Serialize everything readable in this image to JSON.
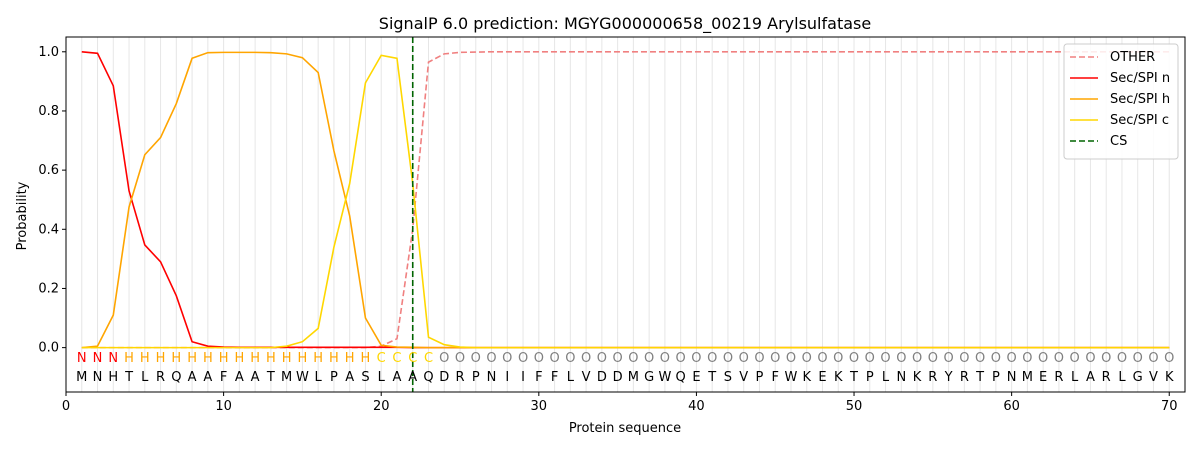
{
  "chart_data": {
    "type": "line",
    "title": "SignalP 6.0 prediction: MGYG000000658_00219 Arylsulfatase",
    "xlabel": "Protein sequence",
    "ylabel": "Probability",
    "xlim": [
      0,
      71
    ],
    "ylim": [
      -0.15,
      1.05
    ],
    "xticks": [
      0,
      10,
      20,
      30,
      40,
      50,
      60,
      70
    ],
    "yticks": [
      0.0,
      0.2,
      0.4,
      0.6,
      0.8,
      1.0
    ],
    "legend_position": "top-right",
    "sequence": "MNHTLRQAAFAATMWLPASLAAQDRPNIIFFLVDDMGWQETSVPFWKEKTPLNKRYRTPNMERLARLGVK",
    "labels": "NNNHHHHHHHHHHHHHHHHCCCCOOOOOOOOOOOOOOOOOOOOOOOOOOOOOOOOOOOOOOOOOOOOOOOO",
    "label_colors": {
      "N": "#ff0000",
      "H": "#ffa500",
      "C": "#ffd700",
      "O": "#808080"
    },
    "series": [
      {
        "name": "OTHER",
        "color": "#f08080",
        "dash": true,
        "values": [
          0,
          0,
          0,
          0,
          0,
          0,
          0,
          0,
          0,
          0,
          0,
          0,
          0,
          0,
          0,
          0,
          0,
          0,
          0,
          0.005,
          0.03,
          0.4,
          0.965,
          0.993,
          0.998,
          0.999,
          1,
          1,
          1,
          1,
          1,
          1,
          1,
          1,
          1,
          1,
          1,
          1,
          1,
          1,
          1,
          1,
          1,
          1,
          1,
          1,
          1,
          1,
          1,
          1,
          1,
          1,
          1,
          1,
          1,
          1,
          1,
          1,
          1,
          1,
          1,
          1,
          1,
          1,
          1,
          1,
          1,
          1,
          1,
          1
        ]
      },
      {
        "name": "Sec/SPI n",
        "color": "#ff0000",
        "dash": false,
        "values": [
          1.0,
          0.995,
          0.885,
          0.53,
          0.347,
          0.29,
          0.175,
          0.02,
          0.005,
          0.002,
          0.001,
          0.001,
          0.001,
          0.001,
          0.001,
          0.001,
          0.001,
          0.001,
          0.001,
          0.001,
          0.001,
          0,
          0,
          0,
          0,
          0,
          0,
          0,
          0,
          0,
          0,
          0,
          0,
          0,
          0,
          0,
          0,
          0,
          0,
          0,
          0,
          0,
          0,
          0,
          0,
          0,
          0,
          0,
          0,
          0,
          0,
          0,
          0,
          0,
          0,
          0,
          0,
          0,
          0,
          0,
          0,
          0,
          0,
          0,
          0,
          0,
          0,
          0,
          0,
          0
        ]
      },
      {
        "name": "Sec/SPI h",
        "color": "#ffa500",
        "dash": false,
        "values": [
          0,
          0.005,
          0.11,
          0.475,
          0.652,
          0.71,
          0.825,
          0.978,
          0.997,
          0.998,
          0.998,
          0.998,
          0.997,
          0.993,
          0.98,
          0.93,
          0.665,
          0.445,
          0.1,
          0.008,
          0.002,
          0.001,
          0,
          0,
          0,
          0,
          0,
          0,
          0,
          0,
          0,
          0,
          0,
          0,
          0,
          0,
          0,
          0,
          0,
          0,
          0,
          0,
          0,
          0,
          0,
          0,
          0,
          0,
          0,
          0,
          0,
          0,
          0,
          0,
          0,
          0,
          0,
          0,
          0,
          0,
          0,
          0,
          0,
          0,
          0,
          0,
          0,
          0,
          0,
          0
        ]
      },
      {
        "name": "Sec/SPI c",
        "color": "#ffd700",
        "dash": false,
        "values": [
          0,
          0,
          0,
          0,
          0,
          0,
          0,
          0,
          0,
          0,
          0,
          0,
          0,
          0.005,
          0.02,
          0.065,
          0.34,
          0.555,
          0.895,
          0.988,
          0.978,
          0.555,
          0.035,
          0.01,
          0.002,
          0,
          0,
          0,
          0,
          0,
          0,
          0,
          0,
          0,
          0,
          0,
          0,
          0,
          0,
          0,
          0,
          0,
          0,
          0,
          0,
          0,
          0,
          0,
          0,
          0,
          0,
          0,
          0,
          0,
          0,
          0,
          0,
          0,
          0,
          0,
          0,
          0,
          0,
          0,
          0,
          0,
          0,
          0,
          0,
          0
        ]
      }
    ],
    "cs": {
      "name": "CS",
      "color": "#006400",
      "x": 22
    }
  }
}
